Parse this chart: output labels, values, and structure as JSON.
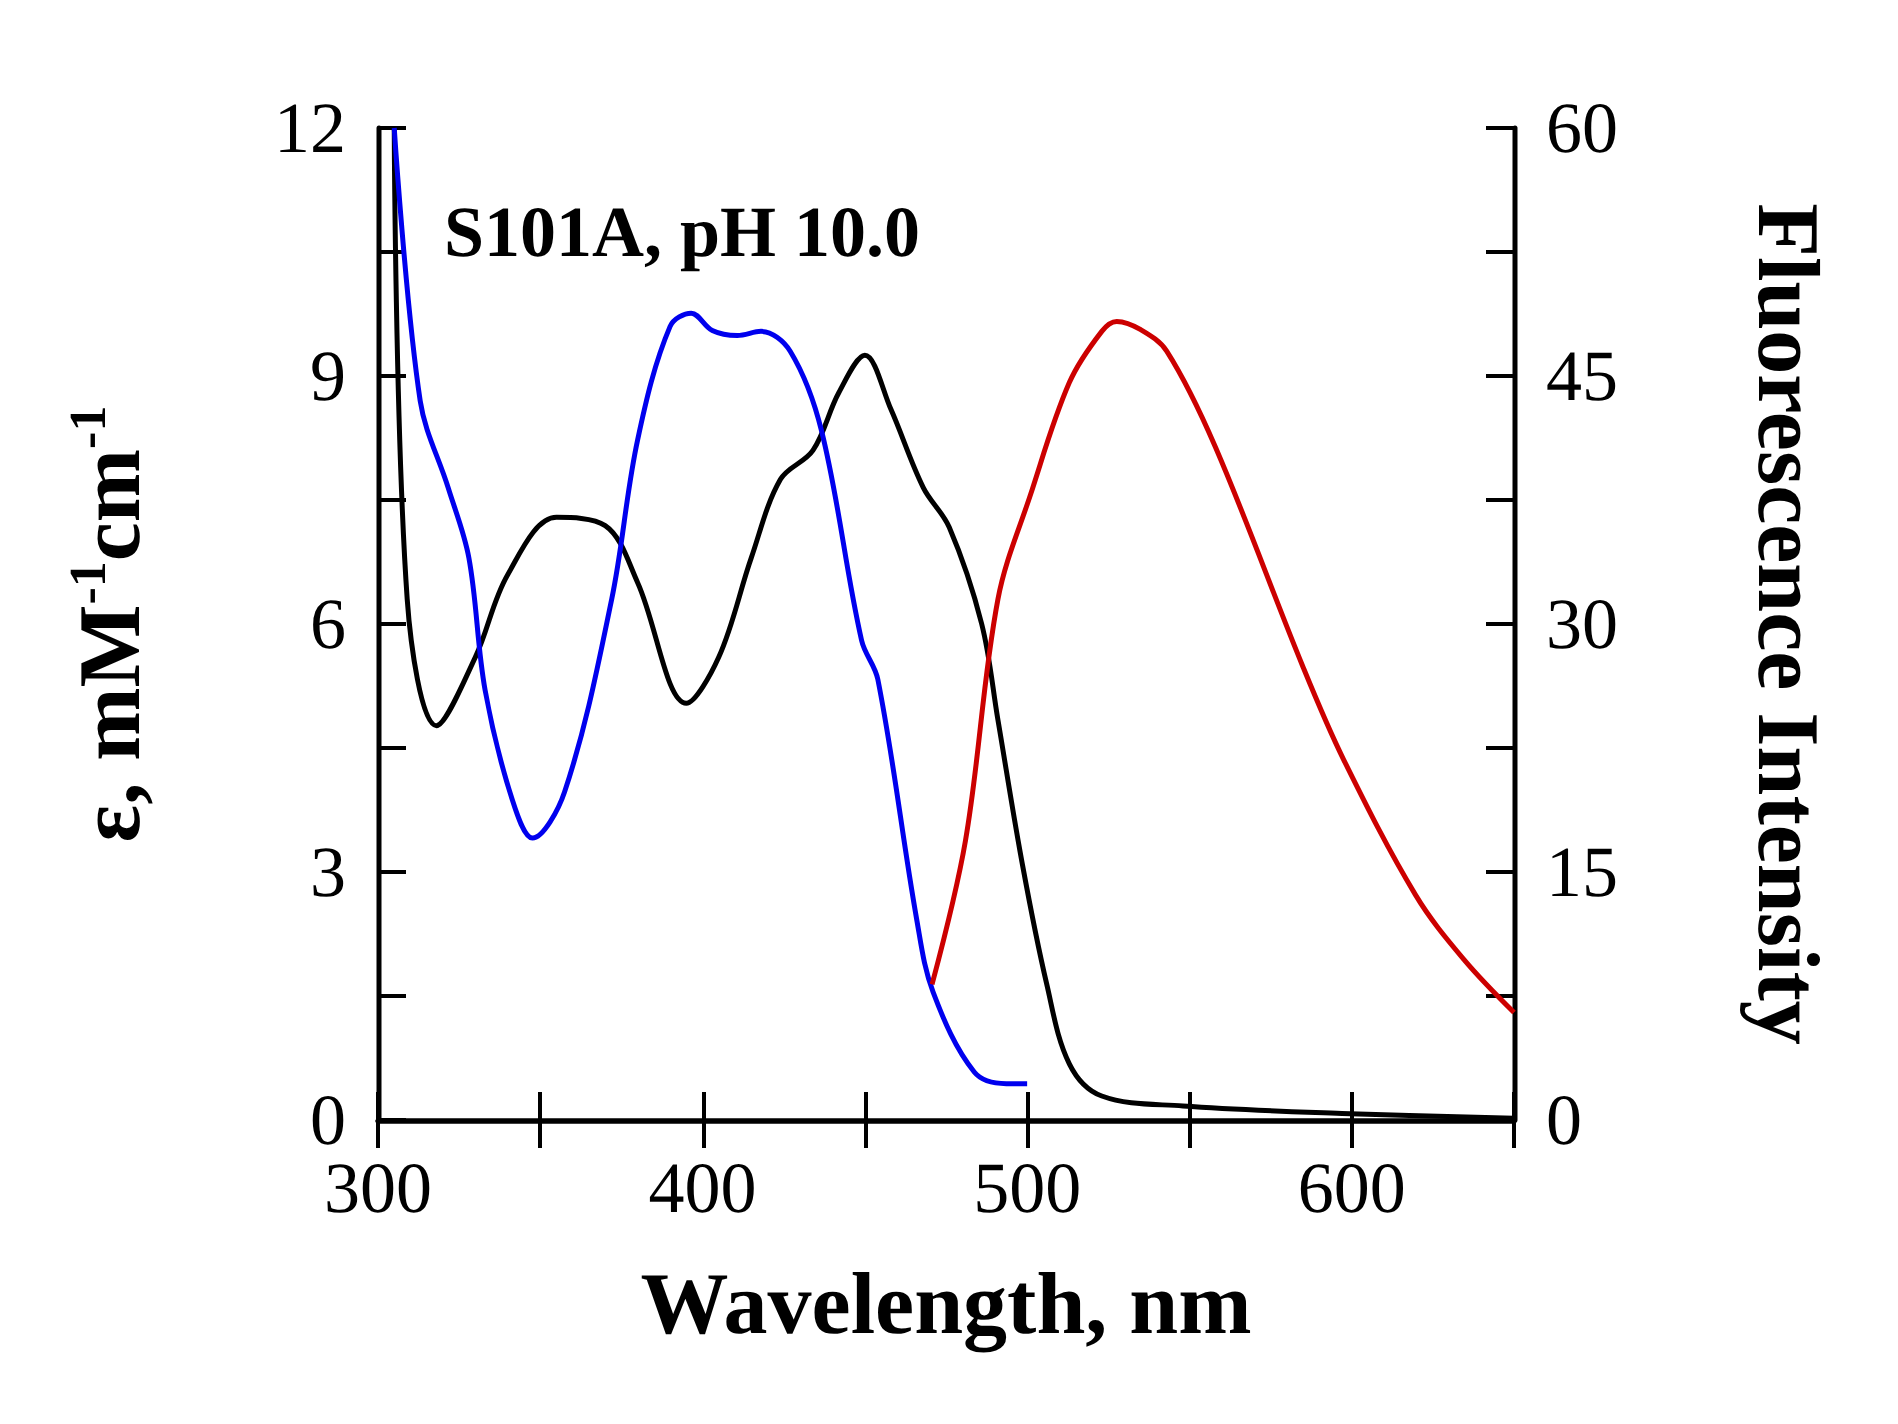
{
  "chart_data": {
    "type": "line",
    "xlabel": "Wavelength, nm",
    "ylabel": "ε, mM$^{-1}$cm$^{-1}$",
    "y2label": "Fluorescence Intensity",
    "annotations": [
      "S101A, pH 10.0"
    ],
    "xlim": [
      300,
      650
    ],
    "xticks": [
      300,
      {
        "value": 350,
        "label": null
      },
      400,
      {
        "value": 450,
        "label": null
      },
      500,
      {
        "value": 550,
        "label": null
      },
      600,
      {
        "value": 650,
        "label": null
      }
    ],
    "ylim": [
      0,
      12
    ],
    "yticks": [
      0,
      {
        "value": 1.5,
        "label": null
      },
      3,
      {
        "value": 4.5,
        "label": null
      },
      6,
      {
        "value": 7.5,
        "label": null
      },
      9,
      {
        "value": 10.5,
        "label": null
      },
      12
    ],
    "y2lim": [
      0,
      60
    ],
    "y2ticks": [
      0,
      {
        "value": 7.5,
        "label": null
      },
      15,
      {
        "value": 22.5,
        "label": null
      },
      30,
      {
        "value": 37.5,
        "label": null
      },
      45,
      {
        "value": 52.5,
        "label": null
      },
      60
    ],
    "grid": false,
    "series": [
      {
        "color": "#000000",
        "x": [
          305,
          309,
          318,
          330,
          340,
          355,
          370,
          380,
          395,
          405,
          415,
          424,
          434,
          442,
          450,
          458,
          468,
          476,
          486,
          491,
          498.5,
          506,
          513,
          523,
          548,
          597,
          650
        ],
        "values": [
          12,
          6.3,
          4.77,
          5.6,
          6.6,
          7.29,
          7.19,
          6.5,
          5.04,
          5.6,
          6.8,
          7.75,
          8.1,
          8.8,
          9.25,
          8.6,
          7.65,
          7.17,
          6.0,
          4.84,
          3.1,
          1.65,
          0.68,
          0.29,
          0.17,
          0.08,
          0.02
        ]
      },
      {
        "color": "#0000ee",
        "x": [
          305,
          313,
          321.6,
          328,
          333,
          341.4,
          347.6,
          357.5,
          372,
          380,
          390,
          396.5,
          403,
          410.7,
          418,
          427,
          436.7,
          449,
          454,
          466,
          471,
          483.7,
          493.6,
          500
        ],
        "values": [
          12,
          8.7,
          7.65,
          6.8,
          5.2,
          3.87,
          3.41,
          3.97,
          6.3,
          8.23,
          9.6,
          9.76,
          9.55,
          9.49,
          9.54,
          9.3,
          8.33,
          5.8,
          5.33,
          2.42,
          1.55,
          0.58,
          0.44,
          0.44
        ]
      },
      {
        "color": "#cc0000",
        "axis": "y2",
        "x": [
          470.7,
          481,
          491,
          501,
          513,
          523,
          527.6,
          535,
          543,
          558,
          585,
          597.5,
          619.7,
          634.6,
          650
        ],
        "values": [
          8.2,
          16.9,
          31.5,
          37.8,
          44.6,
          47.7,
          48.3,
          47.8,
          46.5,
          40.7,
          27.4,
          21.8,
          13.6,
          9.7,
          6.5
        ]
      }
    ]
  }
}
